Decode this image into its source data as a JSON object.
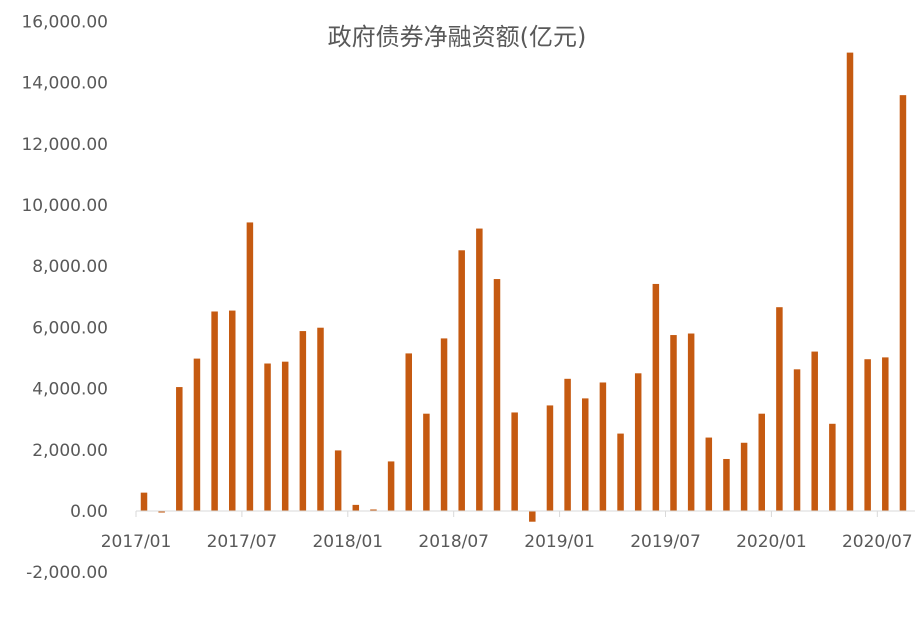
{
  "chart_data": {
    "type": "bar",
    "title": "政府债券净融资额(亿元)",
    "xlabel": "",
    "ylabel": "",
    "ylim": [
      -2000,
      16000
    ],
    "yticks": [
      -2000,
      0,
      2000,
      4000,
      6000,
      8000,
      10000,
      12000,
      14000,
      16000
    ],
    "ytick_labels": [
      "-2,000.00",
      "0.00",
      "2,000.00",
      "4,000.00",
      "6,000.00",
      "8,000.00",
      "10,000.00",
      "12,000.00",
      "14,000.00",
      "16,000.00"
    ],
    "xtick_labels": [
      {
        "index": 0,
        "label": "2017/01"
      },
      {
        "index": 6,
        "label": "2017/07"
      },
      {
        "index": 12,
        "label": "2018/01"
      },
      {
        "index": 18,
        "label": "2018/07"
      },
      {
        "index": 24,
        "label": "2019/01"
      },
      {
        "index": 30,
        "label": "2019/07"
      },
      {
        "index": 36,
        "label": "2020/01"
      },
      {
        "index": 42,
        "label": "2020/07"
      }
    ],
    "bar_color": "#C55A11",
    "grid": false,
    "categories": [
      "2017/01",
      "2017/02",
      "2017/03",
      "2017/04",
      "2017/05",
      "2017/06",
      "2017/07",
      "2017/08",
      "2017/09",
      "2017/10",
      "2017/11",
      "2017/12",
      "2018/01",
      "2018/02",
      "2018/03",
      "2018/04",
      "2018/05",
      "2018/06",
      "2018/07",
      "2018/08",
      "2018/09",
      "2018/10",
      "2018/11",
      "2018/12",
      "2019/01",
      "2019/02",
      "2019/03",
      "2019/04",
      "2019/05",
      "2019/06",
      "2019/07",
      "2019/08",
      "2019/09",
      "2019/10",
      "2019/11",
      "2019/12",
      "2020/01",
      "2020/02",
      "2020/03",
      "2020/04",
      "2020/05",
      "2020/06",
      "2020/07",
      "2020/08"
    ],
    "values": [
      600,
      -50,
      4050,
      4980,
      6520,
      6550,
      9430,
      4820,
      4880,
      5880,
      5990,
      1980,
      200,
      50,
      1620,
      5150,
      3180,
      5640,
      8520,
      9230,
      7580,
      3220,
      -350,
      3450,
      4320,
      3680,
      4200,
      2530,
      4500,
      7420,
      5750,
      5800,
      2400,
      1700,
      2230,
      3180,
      6660,
      4630,
      5210,
      2850,
      14980,
      4960,
      5020,
      13590
    ]
  }
}
